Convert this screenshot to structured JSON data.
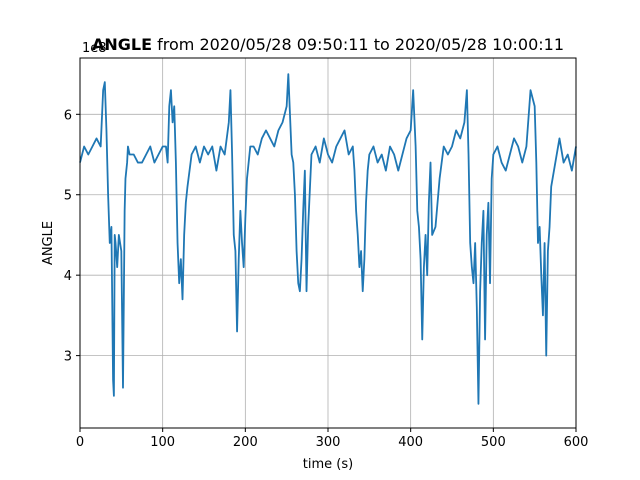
{
  "chart_data": {
    "type": "line",
    "title_bold": "ANGLE",
    "title_rest": " from 2020/05/28 09:50:11 to 2020/05/28 10:00:11",
    "xlabel": "time (s)",
    "ylabel": "ANGLE",
    "y_offset_label": "1e8",
    "xlim": [
      0,
      600
    ],
    "ylim": [
      2.1,
      6.7
    ],
    "xticks": [
      0,
      100,
      200,
      300,
      400,
      500,
      600
    ],
    "yticks": [
      3,
      4,
      5,
      6
    ],
    "grid": true,
    "line_color": "#1f77b4",
    "series": [
      {
        "x": [
          0,
          5,
          10,
          15,
          20,
          25,
          28,
          30,
          32,
          34,
          36,
          38,
          40,
          41,
          42,
          43,
          45,
          47,
          50,
          52,
          54,
          55,
          56,
          57,
          58,
          60,
          65,
          70,
          75,
          80,
          85,
          90,
          95,
          100,
          104,
          106,
          108,
          110,
          112,
          114,
          116,
          118,
          120,
          122,
          124,
          126,
          128,
          130,
          135,
          140,
          145,
          150,
          155,
          160,
          165,
          170,
          175,
          180,
          182,
          184,
          186,
          188,
          190,
          192,
          194,
          196,
          198,
          200,
          202,
          204,
          206,
          210,
          215,
          220,
          225,
          230,
          235,
          240,
          245,
          250,
          252,
          254,
          256,
          258,
          260,
          262,
          264,
          266,
          268,
          270,
          272,
          274,
          276,
          280,
          285,
          290,
          295,
          300,
          305,
          310,
          315,
          320,
          325,
          330,
          332,
          334,
          336,
          338,
          340,
          342,
          344,
          346,
          348,
          350,
          355,
          360,
          365,
          370,
          375,
          380,
          385,
          390,
          395,
          400,
          403,
          406,
          408,
          410,
          412,
          414,
          416,
          418,
          420,
          422,
          424,
          426,
          430,
          435,
          440,
          445,
          450,
          455,
          460,
          465,
          468,
          470,
          472,
          474,
          476,
          478,
          480,
          482,
          484,
          486,
          488,
          490,
          492,
          494,
          496,
          498,
          500,
          505,
          510,
          515,
          520,
          525,
          530,
          535,
          540,
          545,
          550,
          552,
          554,
          556,
          558,
          560,
          562,
          564,
          566,
          568,
          570,
          575,
          580,
          585,
          590,
          595,
          600
        ],
        "values": [
          5.4,
          5.6,
          5.5,
          5.6,
          5.7,
          5.6,
          6.3,
          6.4,
          5.8,
          5.0,
          4.4,
          4.6,
          2.7,
          2.5,
          4.5,
          4.4,
          4.1,
          4.5,
          4.3,
          2.6,
          4.8,
          5.2,
          5.3,
          5.4,
          5.6,
          5.5,
          5.5,
          5.4,
          5.4,
          5.5,
          5.6,
          5.4,
          5.5,
          5.6,
          5.6,
          5.4,
          6.1,
          6.3,
          5.9,
          6.1,
          5.4,
          4.4,
          3.9,
          4.2,
          3.7,
          4.5,
          4.9,
          5.1,
          5.5,
          5.6,
          5.4,
          5.6,
          5.5,
          5.6,
          5.3,
          5.6,
          5.5,
          5.9,
          6.3,
          5.5,
          4.5,
          4.3,
          3.3,
          4.2,
          4.8,
          4.4,
          4.1,
          4.7,
          5.2,
          5.4,
          5.6,
          5.6,
          5.5,
          5.7,
          5.8,
          5.7,
          5.6,
          5.8,
          5.9,
          6.1,
          6.5,
          6.0,
          5.5,
          5.4,
          5.0,
          4.3,
          3.9,
          3.8,
          4.2,
          4.8,
          5.3,
          3.8,
          4.6,
          5.5,
          5.6,
          5.4,
          5.7,
          5.5,
          5.4,
          5.6,
          5.7,
          5.8,
          5.5,
          5.6,
          5.3,
          4.8,
          4.5,
          4.1,
          4.3,
          3.8,
          4.2,
          4.9,
          5.3,
          5.5,
          5.6,
          5.4,
          5.5,
          5.3,
          5.6,
          5.5,
          5.3,
          5.5,
          5.7,
          5.8,
          6.3,
          5.6,
          4.8,
          4.6,
          4.2,
          3.2,
          4.1,
          4.5,
          4.0,
          4.9,
          5.4,
          4.5,
          4.6,
          5.2,
          5.6,
          5.5,
          5.6,
          5.8,
          5.7,
          5.9,
          6.3,
          5.5,
          4.4,
          4.1,
          3.9,
          4.4,
          3.6,
          2.4,
          3.8,
          4.4,
          4.8,
          3.2,
          4.5,
          4.9,
          3.9,
          5.2,
          5.5,
          5.6,
          5.4,
          5.3,
          5.5,
          5.7,
          5.6,
          5.4,
          5.6,
          6.3,
          6.1,
          5.4,
          4.4,
          4.6,
          4.0,
          3.5,
          4.4,
          3.0,
          4.3,
          4.6,
          5.1,
          5.4,
          5.7,
          5.4,
          5.5,
          5.3,
          5.6
        ]
      }
    ]
  }
}
